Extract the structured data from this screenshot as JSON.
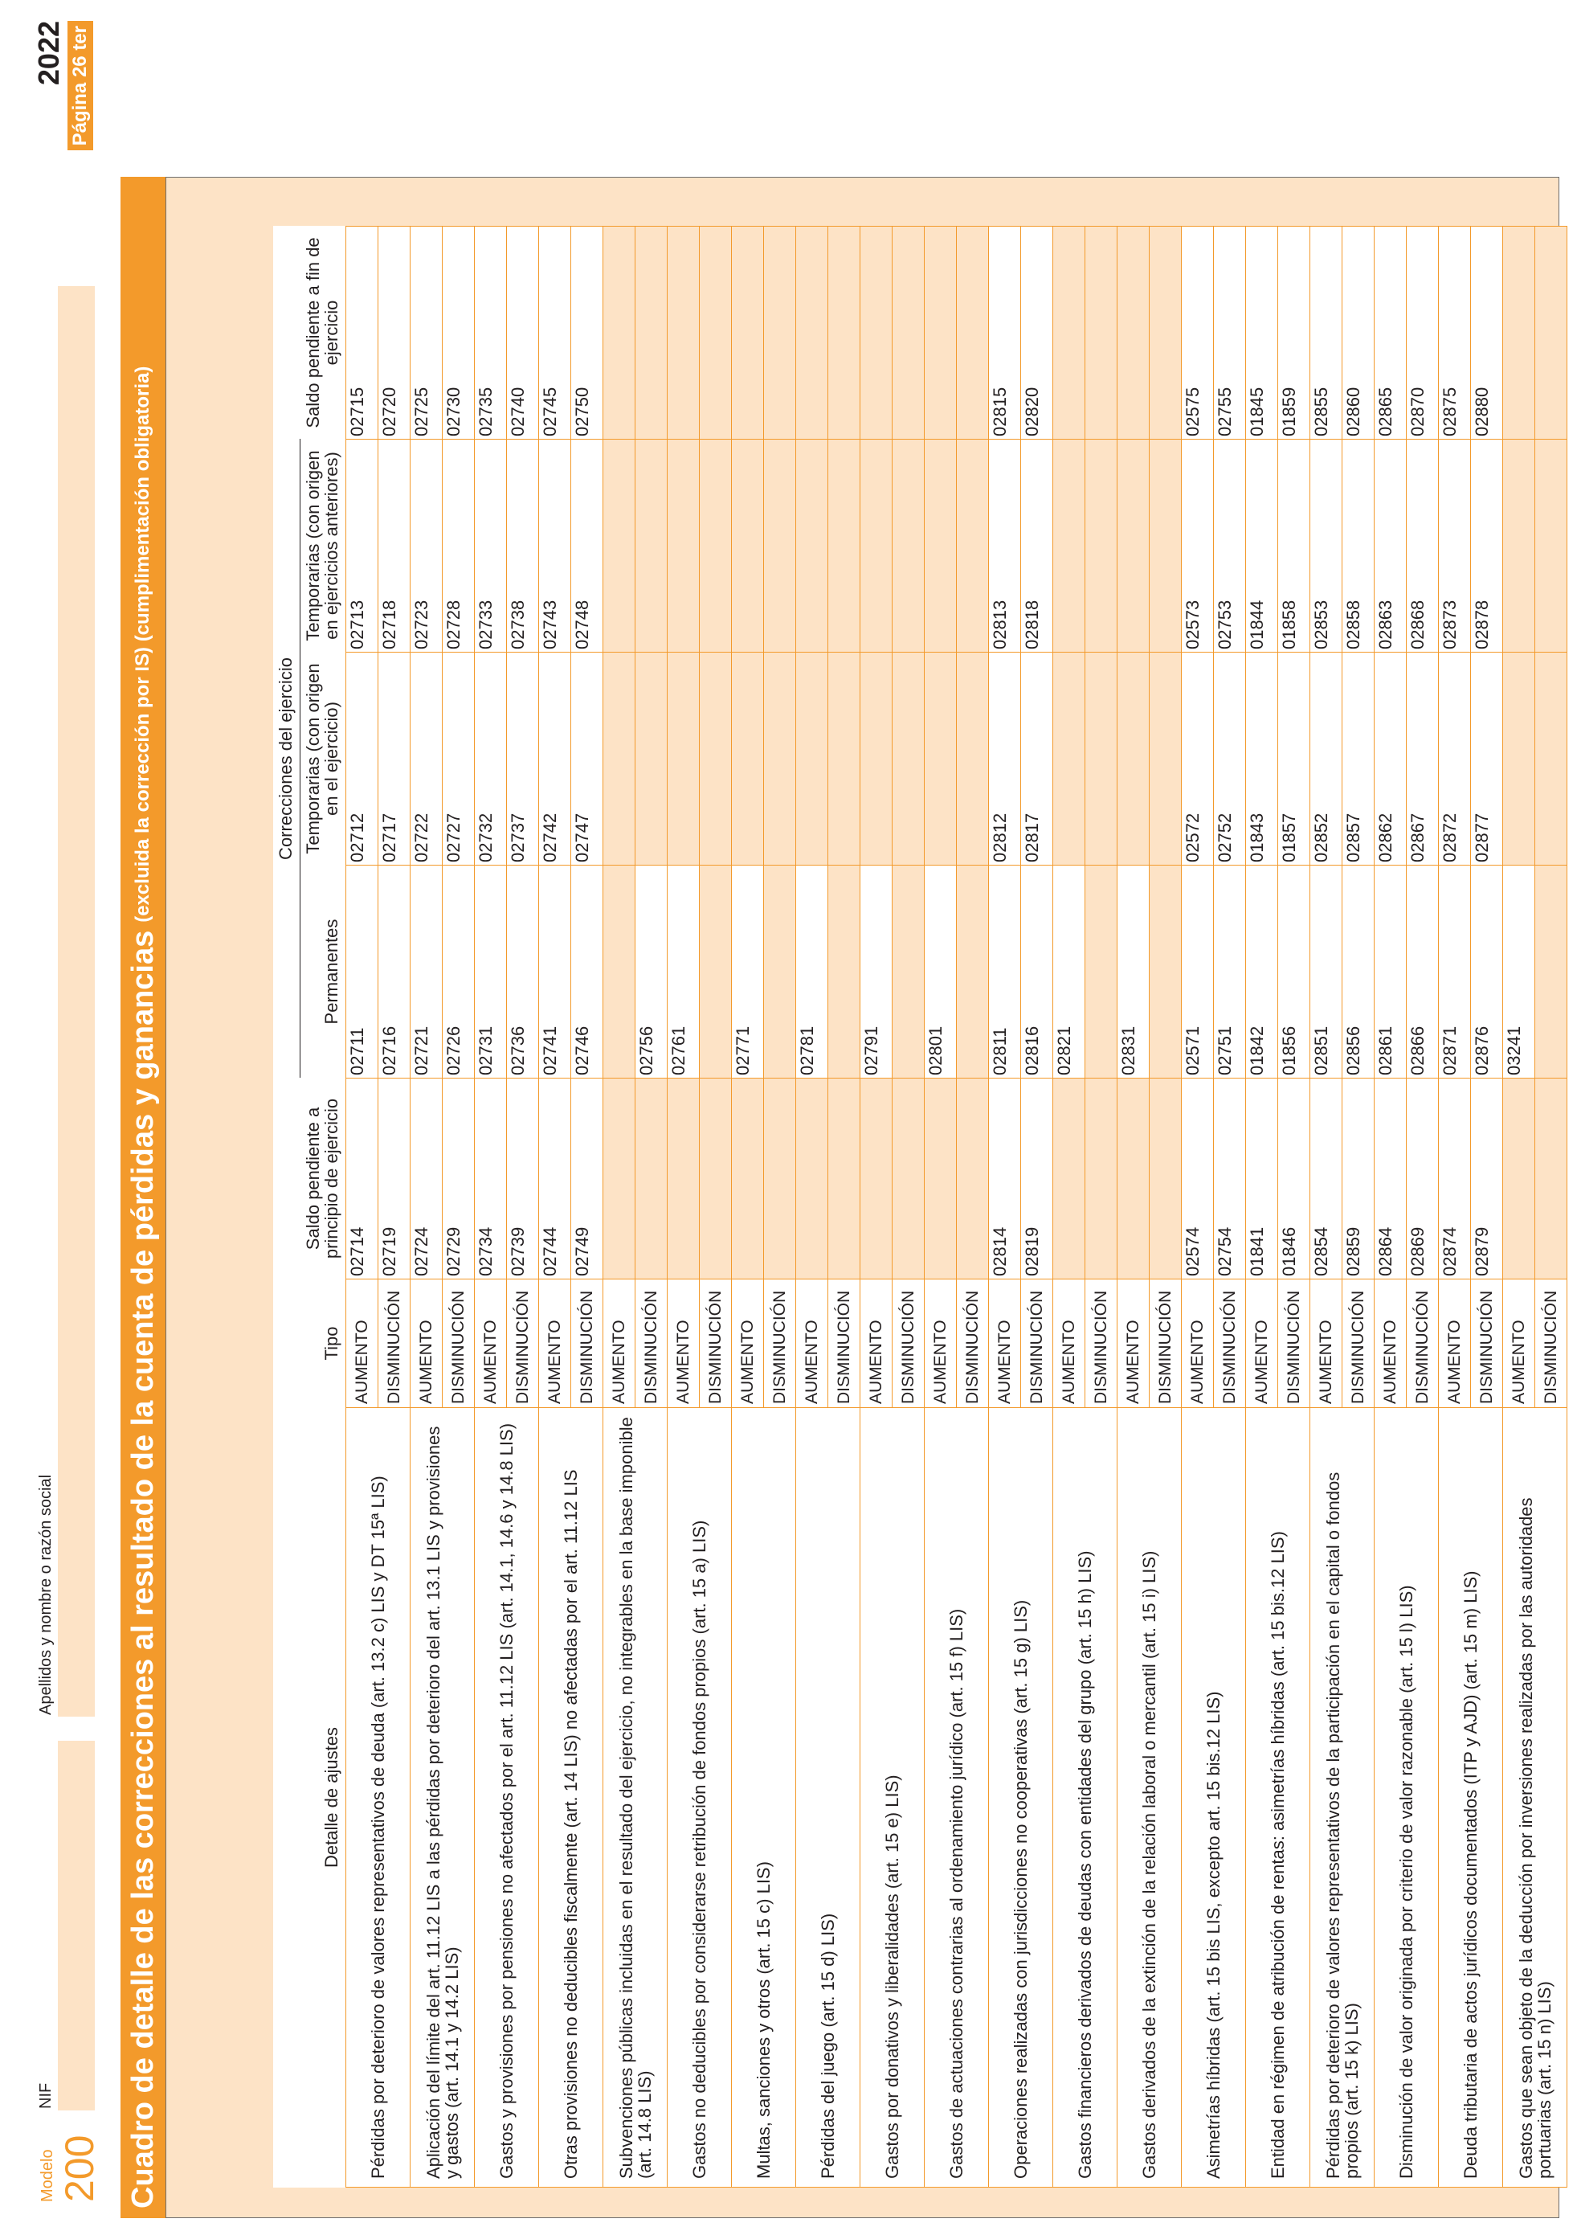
{
  "header": {
    "modelo_label": "Modelo",
    "modelo_number": "200",
    "nif_label": "NIF",
    "name_label": "Apellidos y nombre o razón social",
    "year": "2022",
    "pagina": "Página 26 ter"
  },
  "title": {
    "main": "Cuadro de detalle de las correcciones al resultado de la cuenta de pérdidas y ganancias",
    "sub": "(excluida la corrección por IS) (cumplimentación obligatoria)"
  },
  "columns": {
    "detalle": "Detalle de ajustes",
    "tipo": "Tipo",
    "saldo_principio": "Saldo pendiente a principio de ejercicio",
    "grupo": "Correcciones del ejercicio",
    "permanentes": "Permanentes",
    "temp_ejercicio": "Temporarias (con origen en el ejercicio)",
    "temp_anteriores": "Temporarias (con origen en ejercicios anteriores)",
    "saldo_fin": "Saldo pendiente a fin de ejercicio"
  },
  "types": {
    "aumento": "AUMENTO",
    "disminucion": "DISMINUCIÓN"
  },
  "rows": [
    {
      "desc": "Pérdidas por deterioro de valores representativos de deuda (art. 13.2 c) LIS y DT 15ª LIS)",
      "aumento": [
        "02714",
        "02711",
        "02712",
        "02713",
        "02715"
      ],
      "disminucion": [
        "02719",
        "02716",
        "02717",
        "02718",
        "02720"
      ]
    },
    {
      "desc": "Aplicación del límite del art. 11.12 LIS a las pérdidas por deterioro del art. 13.1 LIS y provisiones y gastos (art. 14.1 y 14.2 LIS)",
      "aumento": [
        "02724",
        "02721",
        "02722",
        "02723",
        "02725"
      ],
      "disminucion": [
        "02729",
        "02726",
        "02727",
        "02728",
        "02730"
      ]
    },
    {
      "desc": "Gastos y provisiones por pensiones no afectados por el art. 11.12 LIS (art. 14.1, 14.6 y 14.8 LIS)",
      "aumento": [
        "02734",
        "02731",
        "02732",
        "02733",
        "02735"
      ],
      "disminucion": [
        "02739",
        "02736",
        "02737",
        "02738",
        "02740"
      ]
    },
    {
      "desc": "Otras provisiones no deducibles fiscalmente (art. 14 LIS) no afectadas por el art. 11.12 LIS",
      "aumento": [
        "02744",
        "02741",
        "02742",
        "02743",
        "02745"
      ],
      "disminucion": [
        "02749",
        "02746",
        "02747",
        "02748",
        "02750"
      ]
    },
    {
      "desc": "Subvenciones públicas incluidas en el resultado del ejercicio, no integrables en la base imponible (art. 14.8 LIS)",
      "aumento": [
        "",
        "",
        "",
        "",
        ""
      ],
      "disminucion": [
        "",
        "02756",
        "",
        "",
        ""
      ]
    },
    {
      "desc": "Gastos no deducibles por considerarse retribución de fondos propios (art. 15 a) LIS)",
      "aumento": [
        "",
        "02761",
        "",
        "",
        ""
      ],
      "disminucion": [
        "",
        "",
        "",
        "",
        ""
      ]
    },
    {
      "desc": "Multas, sanciones y otros (art. 15 c) LIS)",
      "aumento": [
        "",
        "02771",
        "",
        "",
        ""
      ],
      "disminucion": [
        "",
        "",
        "",
        "",
        ""
      ]
    },
    {
      "desc": "Pérdidas del juego (art. 15 d) LIS)",
      "aumento": [
        "",
        "02781",
        "",
        "",
        ""
      ],
      "disminucion": [
        "",
        "",
        "",
        "",
        ""
      ]
    },
    {
      "desc": "Gastos por donativos y liberalidades (art. 15 e) LIS)",
      "aumento": [
        "",
        "02791",
        "",
        "",
        ""
      ],
      "disminucion": [
        "",
        "",
        "",
        "",
        ""
      ]
    },
    {
      "desc": "Gastos de actuaciones contrarias al ordenamiento jurídico (art. 15 f) LIS)",
      "aumento": [
        "",
        "02801",
        "",
        "",
        ""
      ],
      "disminucion": [
        "",
        "",
        "",
        "",
        ""
      ]
    },
    {
      "desc": "Operaciones realizadas con jurisdicciones no cooperativas (art. 15 g) LIS)",
      "aumento": [
        "02814",
        "02811",
        "02812",
        "02813",
        "02815"
      ],
      "disminucion": [
        "02819",
        "02816",
        "02817",
        "02818",
        "02820"
      ]
    },
    {
      "desc": "Gastos financieros derivados de deudas con entidades del grupo (art. 15 h) LIS)",
      "aumento": [
        "",
        "02821",
        "",
        "",
        ""
      ],
      "disminucion": [
        "",
        "",
        "",
        "",
        ""
      ]
    },
    {
      "desc": "Gastos derivados de la extinción de la relación laboral o mercantil (art. 15 i) LIS)",
      "aumento": [
        "",
        "02831",
        "",
        "",
        ""
      ],
      "disminucion": [
        "",
        "",
        "",
        "",
        ""
      ]
    },
    {
      "desc": "Asimetrías híbridas (art. 15 bis LIS, excepto art. 15 bis.12 LIS)",
      "aumento": [
        "02574",
        "02571",
        "02572",
        "02573",
        "02575"
      ],
      "disminucion": [
        "02754",
        "02751",
        "02752",
        "02753",
        "02755"
      ]
    },
    {
      "desc": "Entidad en régimen de atribución de rentas: asimetrías híbridas (art. 15 bis.12 LIS)",
      "aumento": [
        "01841",
        "01842",
        "01843",
        "01844",
        "01845"
      ],
      "disminucion": [
        "01846",
        "01856",
        "01857",
        "01858",
        "01859"
      ]
    },
    {
      "desc": "Pérdidas por deterioro de valores representativos de la participación en el capital o fondos propios (art. 15 k) LIS)",
      "aumento": [
        "02854",
        "02851",
        "02852",
        "02853",
        "02855"
      ],
      "disminucion": [
        "02859",
        "02856",
        "02857",
        "02858",
        "02860"
      ]
    },
    {
      "desc": "Disminución de valor originada por criterio de valor razonable (art. 15 l) LIS)",
      "aumento": [
        "02864",
        "02861",
        "02862",
        "02863",
        "02865"
      ],
      "disminucion": [
        "02869",
        "02866",
        "02867",
        "02868",
        "02870"
      ]
    },
    {
      "desc": "Deuda tributaria de actos jurídicos documentados (ITP y AJD) (art. 15 m) LIS)",
      "aumento": [
        "02874",
        "02871",
        "02872",
        "02873",
        "02875"
      ],
      "disminucion": [
        "02879",
        "02876",
        "02877",
        "02878",
        "02880"
      ]
    },
    {
      "desc": "Gastos que sean objeto de la deducción por inversiones realizadas por las autoridades portuarias (art. 15 n) LIS)",
      "aumento": [
        "",
        "03241",
        "",
        "",
        ""
      ],
      "disminucion": [
        "",
        "",
        "",
        "",
        ""
      ]
    }
  ]
}
